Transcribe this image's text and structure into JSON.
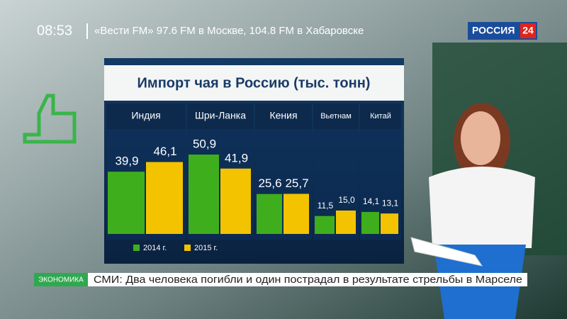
{
  "screen": {
    "clock": "08:53",
    "radio": "«Вести FM» 97.6 FM в Москве, 104.8 FM в Хабаровске",
    "channel": "РОССИЯ",
    "channel_number": "24",
    "section": "ЭКОНОМИКА",
    "headline": "СМИ: Два человека погибли и один пострадал в результате стрельбы в Марселе"
  },
  "chart_data": {
    "type": "bar",
    "title": "Импорт чая в Россию (тыс. тонн)",
    "categories": [
      "Индия",
      "Шри-Ланка",
      "Кения",
      "Вьетнам",
      "Китай"
    ],
    "series": [
      {
        "name": "2014 г.",
        "color": "#3fae1c",
        "values": [
          39.9,
          50.9,
          25.6,
          11.5,
          14.1
        ],
        "value_labels": [
          "39,9",
          "50,9",
          "25,6",
          "11,5",
          "14,1"
        ]
      },
      {
        "name": "2015 г.",
        "color": "#f3c300",
        "values": [
          46.1,
          41.9,
          25.7,
          15.0,
          13.1
        ],
        "value_labels": [
          "46,1",
          "41,9",
          "25,7",
          "15,0",
          "13,1"
        ]
      }
    ]
  }
}
